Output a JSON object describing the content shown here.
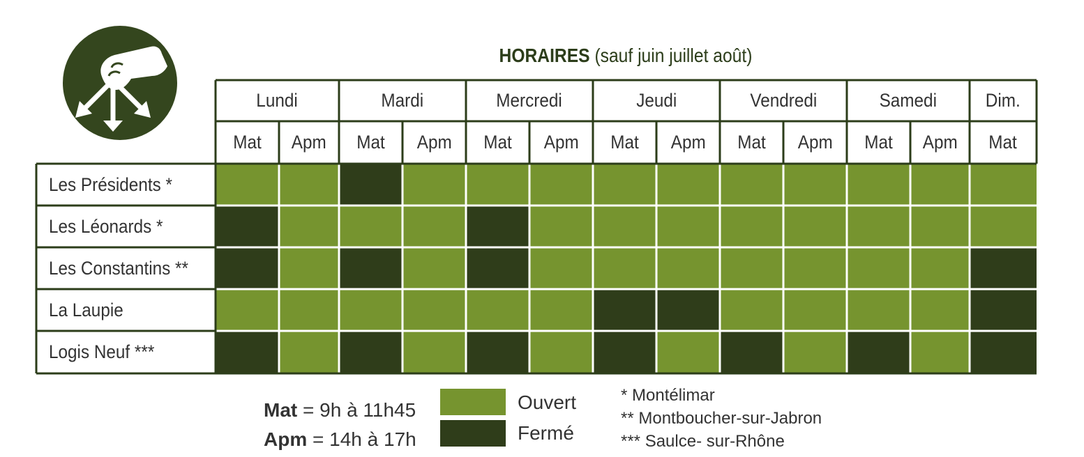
{
  "title": {
    "bold": "HORAIRES",
    "rest": "(sauf juin juillet août)"
  },
  "days": [
    {
      "label": "Lundi",
      "sessions": [
        "Mat",
        "Apm"
      ]
    },
    {
      "label": "Mardi",
      "sessions": [
        "Mat",
        "Apm"
      ]
    },
    {
      "label": "Mercredi",
      "sessions": [
        "Mat",
        "Apm"
      ]
    },
    {
      "label": "Jeudi",
      "sessions": [
        "Mat",
        "Apm"
      ]
    },
    {
      "label": "Vendredi",
      "sessions": [
        "Mat",
        "Apm"
      ]
    },
    {
      "label": "Samedi",
      "sessions": [
        "Mat",
        "Apm"
      ]
    },
    {
      "label": "Dim.",
      "sessions": [
        "Mat"
      ]
    }
  ],
  "rows": [
    {
      "label": "Les Présidents *",
      "status": [
        1,
        1,
        0,
        1,
        1,
        1,
        1,
        1,
        1,
        1,
        1,
        1,
        1
      ]
    },
    {
      "label": "Les Léonards *",
      "status": [
        0,
        1,
        1,
        1,
        0,
        1,
        1,
        1,
        1,
        1,
        1,
        1,
        1
      ]
    },
    {
      "label": "Les Constantins **",
      "status": [
        0,
        1,
        0,
        1,
        0,
        1,
        1,
        1,
        1,
        1,
        1,
        1,
        0
      ]
    },
    {
      "label": "La Laupie",
      "status": [
        1,
        1,
        1,
        1,
        1,
        1,
        0,
        0,
        1,
        1,
        1,
        1,
        0
      ]
    },
    {
      "label": "Logis Neuf ***",
      "status": [
        0,
        1,
        0,
        1,
        0,
        1,
        0,
        1,
        0,
        1,
        0,
        1,
        0
      ]
    }
  ],
  "legend": {
    "mat_label": "Mat",
    "mat_hours": "= 9h à 11h45",
    "apm_label": "Apm",
    "apm_hours": "= 14h à 17h",
    "open": "Ouvert",
    "closed": "Fermé"
  },
  "notes": [
    "* Montélimar",
    "** Montboucher-sur-Jabron",
    "*** Saulce- sur-Rhône"
  ],
  "colors": {
    "open": "#76942f",
    "closed": "#2f3d1a",
    "border": "#2c3d1a",
    "logo": "#34461e"
  }
}
